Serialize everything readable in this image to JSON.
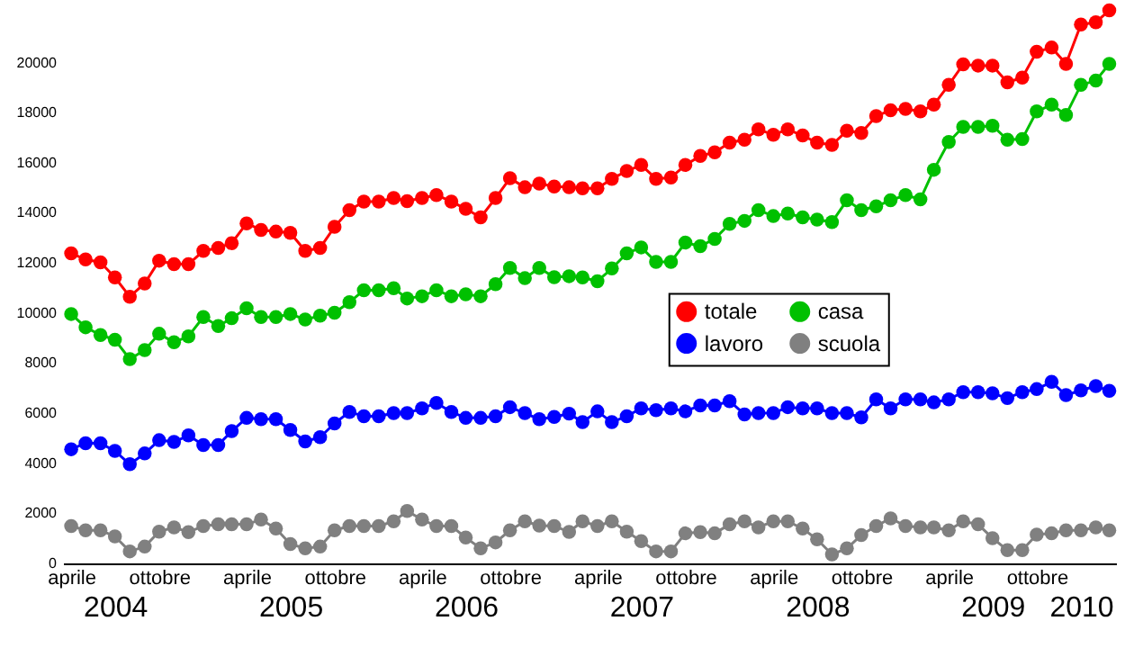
{
  "chart_data": {
    "type": "line",
    "x": [
      "2004-04",
      "2004-05",
      "2004-06",
      "2004-07",
      "2004-08",
      "2004-09",
      "2004-10",
      "2004-11",
      "2004-12",
      "2005-01",
      "2005-02",
      "2005-03",
      "2005-04",
      "2005-05",
      "2005-06",
      "2005-07",
      "2005-08",
      "2005-09",
      "2005-10",
      "2005-11",
      "2005-12",
      "2006-01",
      "2006-02",
      "2006-03",
      "2006-04",
      "2006-05",
      "2006-06",
      "2006-07",
      "2006-08",
      "2006-09",
      "2006-10",
      "2006-11",
      "2006-12",
      "2007-01",
      "2007-02",
      "2007-03",
      "2007-04",
      "2007-05",
      "2007-06",
      "2007-07",
      "2007-08",
      "2007-09",
      "2007-10",
      "2007-11",
      "2007-12",
      "2008-01",
      "2008-02",
      "2008-03",
      "2008-04",
      "2008-05",
      "2008-06",
      "2008-07",
      "2008-08",
      "2008-09",
      "2008-10",
      "2008-11",
      "2008-12",
      "2009-01",
      "2009-02",
      "2009-03",
      "2009-04",
      "2009-05",
      "2009-06",
      "2009-07",
      "2009-08",
      "2009-09",
      "2009-10",
      "2009-11",
      "2009-12",
      "2010-01",
      "2010-02",
      "2010-03"
    ],
    "series": [
      {
        "name": "totale",
        "color": "#ff0000",
        "values": [
          12380,
          12140,
          12020,
          11420,
          10650,
          11180,
          12090,
          11950,
          11950,
          12480,
          12600,
          12790,
          13580,
          13320,
          13250,
          13200,
          12480,
          12600,
          13440,
          14110,
          14450,
          14450,
          14590,
          14470,
          14590,
          14710,
          14450,
          14160,
          13820,
          14590,
          15380,
          15020,
          15170,
          15050,
          15020,
          14980,
          14980,
          15360,
          15670,
          15910,
          15360,
          15410,
          15910,
          16270,
          16420,
          16800,
          16920,
          17330,
          17120,
          17330,
          17090,
          16800,
          16710,
          17280,
          17190,
          17860,
          18100,
          18150,
          18050,
          18320,
          19110,
          19930,
          19880,
          19880,
          19210,
          19400,
          20430,
          20600,
          19950,
          21520,
          21610,
          22090
        ]
      },
      {
        "name": "casa",
        "color": "#00c000",
        "values": [
          9960,
          9430,
          9120,
          8930,
          8160,
          8520,
          9170,
          8830,
          9070,
          9840,
          9480,
          9790,
          10190,
          9840,
          9840,
          9960,
          9740,
          9890,
          10010,
          10430,
          10910,
          10910,
          10990,
          10580,
          10670,
          10910,
          10670,
          10750,
          10670,
          11150,
          11800,
          11390,
          11800,
          11430,
          11470,
          11420,
          11270,
          11780,
          12380,
          12620,
          12040,
          12040,
          12810,
          12670,
          12960,
          13560,
          13680,
          14110,
          13870,
          13970,
          13820,
          13730,
          13630,
          14500,
          14110,
          14260,
          14500,
          14710,
          14540,
          15720,
          16830,
          17430,
          17430,
          17480,
          16920,
          16950,
          18050,
          18320,
          17910,
          19110,
          19280,
          19950
        ]
      },
      {
        "name": "lavoro",
        "color": "#0000ff",
        "values": [
          4560,
          4800,
          4800,
          4490,
          3960,
          4390,
          4920,
          4850,
          5110,
          4730,
          4730,
          5280,
          5810,
          5760,
          5760,
          5330,
          4870,
          5040,
          5590,
          6050,
          5880,
          5880,
          6000,
          6000,
          6190,
          6410,
          6050,
          5810,
          5810,
          5880,
          6240,
          6000,
          5760,
          5850,
          5980,
          5640,
          6070,
          5640,
          5880,
          6190,
          6120,
          6190,
          6070,
          6310,
          6310,
          6480,
          5950,
          6000,
          6000,
          6240,
          6190,
          6190,
          6000,
          6000,
          5830,
          6550,
          6190,
          6550,
          6550,
          6430,
          6550,
          6840,
          6840,
          6790,
          6600,
          6840,
          6960,
          7250,
          6720,
          6910,
          7080,
          6890
        ]
      },
      {
        "name": "scuola",
        "color": "#808080",
        "values": [
          1490,
          1320,
          1320,
          1080,
          480,
          670,
          1270,
          1440,
          1250,
          1490,
          1560,
          1560,
          1560,
          1750,
          1390,
          770,
          600,
          670,
          1320,
          1490,
          1490,
          1490,
          1680,
          2090,
          1750,
          1490,
          1490,
          1030,
          600,
          840,
          1320,
          1680,
          1510,
          1490,
          1260,
          1680,
          1490,
          1680,
          1270,
          890,
          480,
          480,
          1200,
          1250,
          1200,
          1560,
          1680,
          1440,
          1680,
          1680,
          1390,
          960,
          360,
          600,
          1130,
          1490,
          1800,
          1490,
          1440,
          1440,
          1320,
          1680,
          1560,
          1010,
          530,
          530,
          1150,
          1200,
          1320,
          1320,
          1440,
          1320
        ]
      }
    ],
    "xlim": [
      "2004-03-15",
      "2010-03-15"
    ],
    "xticks": [
      {
        "value": "2004-04",
        "label": "aprile"
      },
      {
        "value": "2004-10",
        "label": "ottobre"
      },
      {
        "value": "2005-04",
        "label": "aprile"
      },
      {
        "value": "2005-10",
        "label": "ottobre"
      },
      {
        "value": "2006-04",
        "label": "aprile"
      },
      {
        "value": "2006-10",
        "label": "ottobre"
      },
      {
        "value": "2007-04",
        "label": "aprile"
      },
      {
        "value": "2007-10",
        "label": "ottobre"
      },
      {
        "value": "2008-04",
        "label": "aprile"
      },
      {
        "value": "2008-10",
        "label": "ottobre"
      },
      {
        "value": "2009-04",
        "label": "aprile"
      },
      {
        "value": "2009-10",
        "label": "ottobre"
      }
    ],
    "x2lim": [
      "2004-03-15",
      "2010-03-15"
    ],
    "x2ticks": [
      {
        "value": "2004-07",
        "label": "2004"
      },
      {
        "value": "2005-07",
        "label": "2005"
      },
      {
        "value": "2006-07",
        "label": "2006"
      },
      {
        "value": "2007-07",
        "label": "2007"
      },
      {
        "value": "2008-07",
        "label": "2008"
      },
      {
        "value": "2009-07",
        "label": "2009"
      },
      {
        "value": "2010-01",
        "label": "2010"
      }
    ],
    "ylim": [
      0,
      22500
    ],
    "yticks": [
      0,
      2000,
      4000,
      6000,
      8000,
      10000,
      12000,
      14000,
      16000,
      18000,
      20000
    ],
    "legend": "right",
    "marker": "circle",
    "line_style": "solid"
  }
}
